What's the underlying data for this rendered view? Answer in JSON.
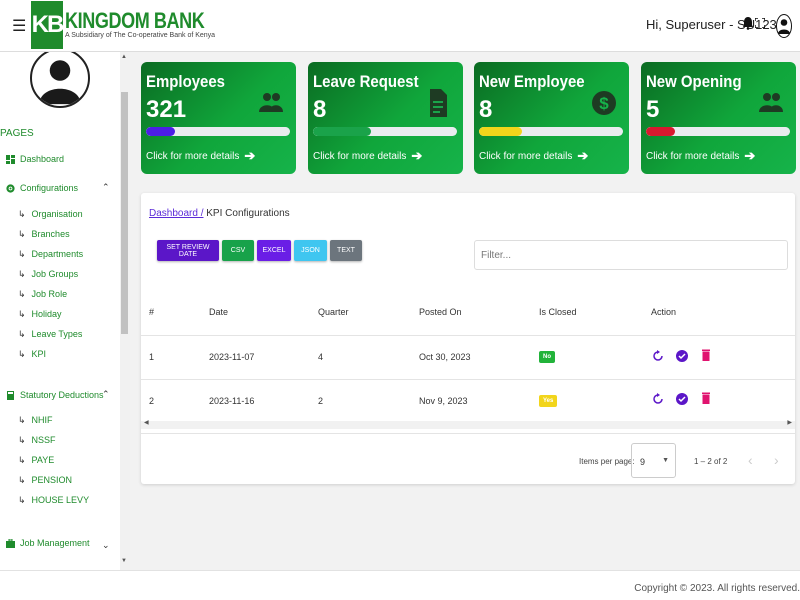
{
  "header": {
    "brand_initials": "KB",
    "brand_name": "KINGDOM BANK",
    "brand_subtitle": "A Subsidiary of The Co-operative Bank of Kenya",
    "greeting": "Hi, Superuser - SU123"
  },
  "sidebar": {
    "section_label": "PAGES",
    "dashboard": "Dashboard",
    "configurations": {
      "label": "Configurations",
      "items": [
        "Organisation",
        "Branches",
        "Departments",
        "Job Groups",
        "Job Role",
        "Holiday",
        "Leave Types",
        "KPI"
      ]
    },
    "statutory": {
      "label": "Statutory Deductions",
      "items": [
        "NHIF",
        "NSSF",
        "PAYE",
        "PENSION",
        "HOUSE LEVY"
      ]
    },
    "job_management": "Job Management"
  },
  "cards": [
    {
      "title": "Employees",
      "value": "321",
      "link": "Click for more details",
      "icon": "users-icon",
      "bar_color": "#4c1ee6",
      "progress": 0.2
    },
    {
      "title": "Leave Request",
      "value": "8",
      "link": "Click for more details",
      "icon": "document-icon",
      "bar_color": "#1aa34a",
      "progress": 0.4
    },
    {
      "title": "New Employee",
      "value": "8",
      "link": "Click for more details",
      "icon": "dollar-icon",
      "bar_color": "#f2d51b",
      "progress": 0.3
    },
    {
      "title": "New Opening",
      "value": "5",
      "link": "Click for more details",
      "icon": "users-icon",
      "bar_color": "#d8192f",
      "progress": 0.2
    }
  ],
  "breadcrumb": {
    "link": "Dashboard /",
    "current": " KPI Configurations"
  },
  "toolbar": {
    "review": "SET REVIEW DATE",
    "csv": "CSV",
    "excel": "EXCEL",
    "json": "JSON",
    "text": "TEXT",
    "filter_placeholder": "Filter..."
  },
  "table": {
    "headers": [
      "#",
      "Date",
      "Quarter",
      "Posted On",
      "Is Closed",
      "Action"
    ],
    "rows": [
      {
        "num": "1",
        "date": "2023-11-07",
        "quarter": "4",
        "posted": "Oct 30, 2023",
        "closed": "No"
      },
      {
        "num": "2",
        "date": "2023-11-16",
        "quarter": "2",
        "posted": "Nov 9, 2023",
        "closed": "Yes"
      }
    ]
  },
  "pagination": {
    "label": "Items per page:",
    "value": "9",
    "range": "1 – 2 of 2"
  },
  "footer": "Copyright © 2023. All rights reserved.",
  "colors": {
    "brand_green": "#1f8b2c",
    "purple": "#5b16c8",
    "pink": "#e0136f"
  }
}
